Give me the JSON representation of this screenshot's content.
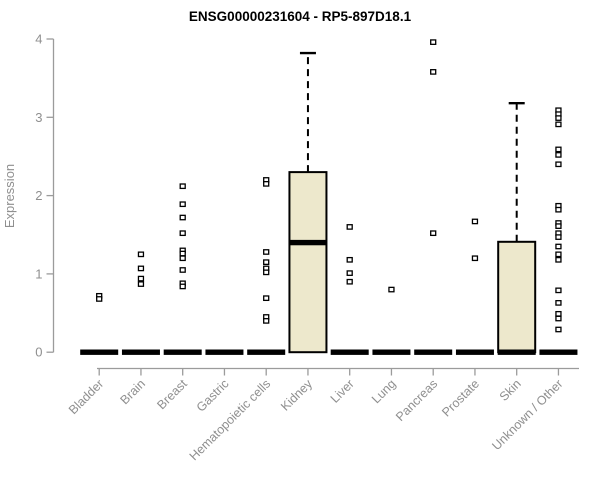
{
  "chart_data": {
    "type": "boxplot-scatter",
    "title": "ENSG00000231604 - RP5-897D18.1",
    "ylabel": "Expression",
    "xlabel": "",
    "ylim": [
      0,
      4
    ],
    "yticks": [
      "0",
      "1",
      "2",
      "3",
      "4"
    ],
    "grid": "off",
    "legend": "none",
    "categories": [
      "Bladder",
      "Brain",
      "Breast",
      "Gastric",
      "Hematopoietic cells",
      "Kidney",
      "Liver",
      "Lung",
      "Pancreas",
      "Prostate",
      "Skin",
      "Unknown / Other"
    ],
    "boxes": [
      {
        "category": "Bladder",
        "q1": 0,
        "median": 0,
        "q3": 0,
        "points": [
          0.72,
          0.68
        ]
      },
      {
        "category": "Brain",
        "q1": 0,
        "median": 0,
        "q3": 0,
        "points": [
          1.25,
          1.07,
          0.94,
          0.87
        ]
      },
      {
        "category": "Breast",
        "q1": 0,
        "median": 0,
        "q3": 0,
        "points": [
          2.12,
          1.89,
          1.72,
          1.52,
          1.3,
          1.26,
          1.2,
          1.05,
          0.88,
          0.84
        ]
      },
      {
        "category": "Gastric",
        "q1": 0,
        "median": 0,
        "q3": 0,
        "points": []
      },
      {
        "category": "Hematopoietic cells",
        "q1": 0,
        "median": 0,
        "q3": 0,
        "points": [
          2.2,
          2.15,
          1.28,
          1.15,
          1.07,
          1.02,
          0.69,
          0.45,
          0.4
        ]
      },
      {
        "category": "Kidney",
        "q1": 0,
        "median": 1.4,
        "q3": 2.3,
        "whisker_high": 3.82,
        "points": []
      },
      {
        "category": "Liver",
        "q1": 0,
        "median": 0,
        "q3": 0,
        "points": [
          1.6,
          1.18,
          1.01,
          0.9
        ]
      },
      {
        "category": "Lung",
        "q1": 0,
        "median": 0,
        "q3": 0,
        "points": [
          0.8
        ]
      },
      {
        "category": "Pancreas",
        "q1": 0,
        "median": 0,
        "q3": 0,
        "points": [
          3.96,
          3.58,
          1.52
        ]
      },
      {
        "category": "Prostate",
        "q1": 0,
        "median": 0,
        "q3": 0,
        "points": [
          1.67,
          1.2
        ]
      },
      {
        "category": "Skin",
        "q1": 0,
        "median": 0,
        "q3": 1.41,
        "whisker_high": 3.18,
        "points": []
      },
      {
        "category": "Unknown / Other",
        "q1": 0,
        "median": 0,
        "q3": 0,
        "points": [
          3.09,
          3.04,
          2.99,
          2.91,
          2.59,
          2.52,
          2.4,
          1.87,
          1.82,
          1.65,
          1.61,
          1.52,
          1.47,
          1.35,
          1.25,
          1.18,
          0.79,
          0.63,
          0.49,
          0.43,
          0.29
        ]
      }
    ],
    "colors": {
      "box_fill": "#ede8cc",
      "box_stroke": "#000000",
      "median": "#000000",
      "point_stroke": "#000000",
      "point_fill": "#ffffff",
      "axis": "#9b9b9b",
      "tick_label": "#8f8f8f",
      "axis_label": "#8f8f8f",
      "title": "#000000",
      "background": "#ffffff"
    }
  }
}
